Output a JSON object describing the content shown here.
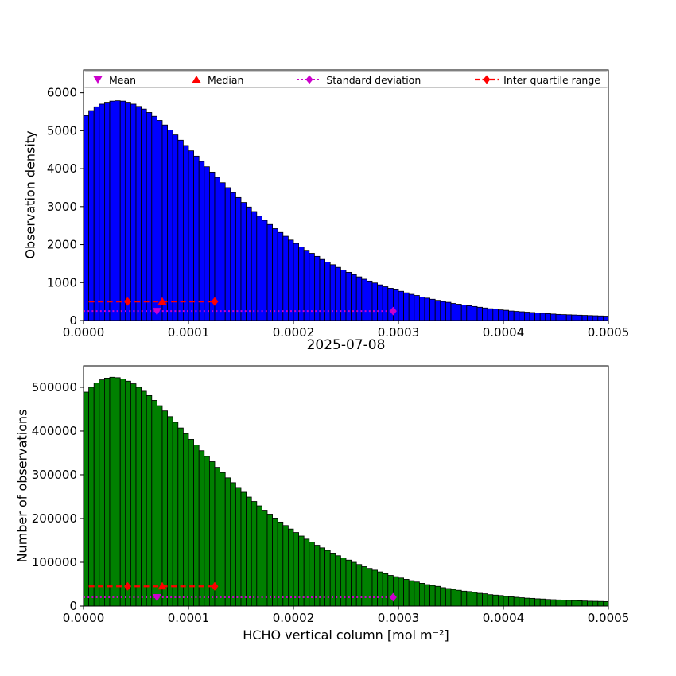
{
  "figure": {
    "date_label": "2025-07-08",
    "xlabel": "HCHO vertical column [mol m⁻²]"
  },
  "legend": {
    "items": [
      {
        "id": "mean",
        "label": "Mean",
        "marker": "triangle-down",
        "color": "#cc00cc",
        "linestyle": "none"
      },
      {
        "id": "median",
        "label": "Median",
        "marker": "triangle-up",
        "color": "#ff0000",
        "linestyle": "none"
      },
      {
        "id": "std",
        "label": "Standard deviation",
        "marker": "diamond",
        "color": "#cc00cc",
        "linestyle": "dotted"
      },
      {
        "id": "iqr",
        "label": "Inter quartile range",
        "marker": "diamond",
        "color": "#ff0000",
        "linestyle": "dashed"
      }
    ]
  },
  "chart_data": [
    {
      "id": "observation-density",
      "type": "bar",
      "title": "",
      "ylabel": "Observation density",
      "bar_color": "#0000ff",
      "bar_edge_color": "#000000",
      "bin_width": 5e-06,
      "xlim": [
        0,
        0.0005
      ],
      "ylim": [
        0,
        6600
      ],
      "xticks": [
        0,
        0.0001,
        0.0002,
        0.0003,
        0.0004,
        0.0005
      ],
      "xtick_labels": [
        "0.0000",
        "0.0001",
        "0.0002",
        "0.0003",
        "0.0004",
        "0.0005"
      ],
      "yticks": [
        0,
        1000,
        2000,
        3000,
        4000,
        5000,
        6000
      ],
      "ytick_labels": [
        "0",
        "1000",
        "2000",
        "3000",
        "4000",
        "5000",
        "6000"
      ],
      "values": [
        5400,
        5530,
        5630,
        5700,
        5750,
        5780,
        5790,
        5780,
        5750,
        5700,
        5640,
        5570,
        5480,
        5380,
        5270,
        5150,
        5020,
        4890,
        4750,
        4610,
        4470,
        4330,
        4190,
        4050,
        3910,
        3770,
        3630,
        3500,
        3370,
        3240,
        3110,
        2990,
        2870,
        2750,
        2640,
        2530,
        2420,
        2320,
        2220,
        2120,
        2030,
        1940,
        1850,
        1770,
        1690,
        1610,
        1540,
        1470,
        1400,
        1330,
        1270,
        1210,
        1150,
        1090,
        1040,
        990,
        940,
        890,
        850,
        810,
        770,
        730,
        690,
        660,
        620,
        590,
        560,
        530,
        500,
        480,
        450,
        430,
        410,
        390,
        370,
        350,
        330,
        310,
        300,
        280,
        270,
        250,
        240,
        230,
        220,
        210,
        200,
        190,
        180,
        170,
        160,
        155,
        150,
        145,
        140,
        135,
        130,
        125,
        120,
        115
      ],
      "markers": {
        "mean": {
          "x": 7e-05,
          "y": 250,
          "color": "#cc00cc"
        },
        "median": {
          "x": 7.5e-05,
          "y": 500,
          "color": "#ff0000"
        },
        "std": {
          "line_x": [
            0,
            0.000295
          ],
          "marker_x": [
            0.000295
          ],
          "y": 250,
          "color": "#cc00cc"
        },
        "iqr": {
          "line_x": [
            5e-06,
            0.000125
          ],
          "marker_x": [
            4.2e-05,
            0.000125
          ],
          "y": 500,
          "color": "#ff0000"
        }
      }
    },
    {
      "id": "number-of-observations",
      "type": "bar",
      "title": "",
      "ylabel": "Number of observations",
      "bar_color": "#008000",
      "bar_edge_color": "#000000",
      "bin_width": 5e-06,
      "xlim": [
        0,
        0.0005
      ],
      "ylim": [
        0,
        549000
      ],
      "xticks": [
        0,
        0.0001,
        0.0002,
        0.0003,
        0.0004,
        0.0005
      ],
      "xtick_labels": [
        "0.0000",
        "0.0001",
        "0.0002",
        "0.0003",
        "0.0004",
        "0.0005"
      ],
      "yticks": [
        0,
        100000,
        200000,
        300000,
        400000,
        500000
      ],
      "ytick_labels": [
        "0",
        "100000",
        "200000",
        "300000",
        "400000",
        "500000"
      ],
      "values": [
        489000,
        500000,
        510000,
        517000,
        521000,
        523000,
        522000,
        519000,
        514000,
        508000,
        500000,
        491000,
        481000,
        470000,
        458000,
        446000,
        433000,
        420000,
        407000,
        394000,
        381000,
        368000,
        355000,
        342000,
        330000,
        317000,
        305000,
        293000,
        282000,
        271000,
        260000,
        249000,
        239000,
        229000,
        219000,
        210000,
        201000,
        192000,
        184000,
        176000,
        168000,
        160000,
        153000,
        146000,
        139000,
        133000,
        127000,
        121000,
        115000,
        110000,
        105000,
        100000,
        95000,
        90000,
        86000,
        82000,
        78000,
        74000,
        70000,
        67000,
        64000,
        61000,
        58000,
        55000,
        52000,
        49000,
        47000,
        45000,
        42000,
        40000,
        38000,
        36000,
        34000,
        33000,
        31000,
        29000,
        28000,
        26000,
        25000,
        24000,
        22000,
        21000,
        20000,
        19000,
        18000,
        17500,
        16500,
        16000,
        15000,
        14500,
        14000,
        13500,
        13000,
        12500,
        12000,
        11500,
        11000,
        10800,
        10500,
        10200
      ],
      "markers": {
        "mean": {
          "x": 7e-05,
          "y": 20000,
          "color": "#cc00cc"
        },
        "median": {
          "x": 7.5e-05,
          "y": 45000,
          "color": "#ff0000"
        },
        "std": {
          "line_x": [
            0,
            0.000295
          ],
          "marker_x": [
            0.000295
          ],
          "y": 20000,
          "color": "#cc00cc"
        },
        "iqr": {
          "line_x": [
            5e-06,
            0.000125
          ],
          "marker_x": [
            4.2e-05,
            0.000125
          ],
          "y": 45000,
          "color": "#ff0000"
        }
      }
    }
  ]
}
